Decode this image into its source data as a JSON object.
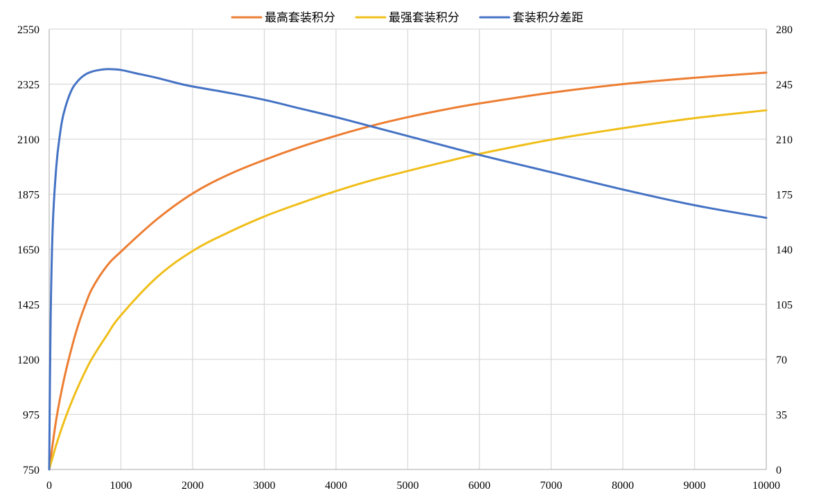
{
  "chart_data": {
    "type": "line",
    "title": "",
    "xlabel": "",
    "ylabel": "",
    "y2label": "",
    "xlim": [
      0,
      10000
    ],
    "ylim": [
      750,
      2550
    ],
    "y2lim": [
      0,
      280
    ],
    "xticks": [
      0,
      1000,
      2000,
      3000,
      4000,
      5000,
      6000,
      7000,
      8000,
      9000,
      10000
    ],
    "yticks": [
      750,
      975,
      1200,
      1425,
      1650,
      1875,
      2100,
      2325,
      2550
    ],
    "y2ticks": [
      0,
      35,
      70,
      105,
      140,
      175,
      210,
      245,
      280
    ],
    "grid": true,
    "legend_position": "top-center",
    "series": [
      {
        "name": "最高套装积分",
        "axis": "left",
        "color": "#ED7D31",
        "x": [
          0,
          100,
          200,
          300,
          400,
          500,
          600,
          800,
          1000,
          1500,
          2000,
          2500,
          3000,
          3500,
          4000,
          4500,
          5000,
          5500,
          6000,
          7000,
          8000,
          9000,
          10000
        ],
        "y": [
          750,
          957,
          1110,
          1232,
          1336,
          1420,
          1490,
          1580,
          1640,
          1772,
          1878,
          1955,
          2015,
          2068,
          2114,
          2155,
          2190,
          2220,
          2246,
          2290,
          2325,
          2351,
          2372
        ]
      },
      {
        "name": "最强套装积分",
        "axis": "left",
        "color": "#F0BE19",
        "x": [
          0,
          100,
          200,
          300,
          400,
          500,
          600,
          800,
          1000,
          1500,
          2000,
          2500,
          3000,
          3500,
          4000,
          4500,
          5000,
          5500,
          6000,
          7000,
          8000,
          9000,
          10000
        ],
        "y": [
          750,
          852,
          940,
          1017,
          1086,
          1149,
          1205,
          1297,
          1380,
          1535,
          1643,
          1719,
          1784,
          1838,
          1888,
          1932,
          1970,
          2006,
          2040,
          2098,
          2145,
          2186,
          2218
        ]
      },
      {
        "name": "套装积分差距",
        "axis": "right",
        "color": "#4472C4",
        "x": [
          0,
          20,
          50,
          100,
          150,
          200,
          300,
          400,
          500,
          600,
          700,
          800,
          850,
          1000,
          1200,
          1500,
          1800,
          2000,
          2500,
          3000,
          3500,
          4000,
          4500,
          5000,
          6000,
          7000,
          8000,
          9000,
          10000
        ],
        "y": [
          0,
          95,
          155,
          193,
          213,
          226,
          240,
          247,
          251,
          253,
          254,
          254.5,
          254.5,
          254,
          252,
          249,
          245.5,
          243.5,
          239.5,
          235,
          229.5,
          224,
          218,
          212,
          200,
          189,
          178,
          168,
          160
        ]
      }
    ]
  }
}
